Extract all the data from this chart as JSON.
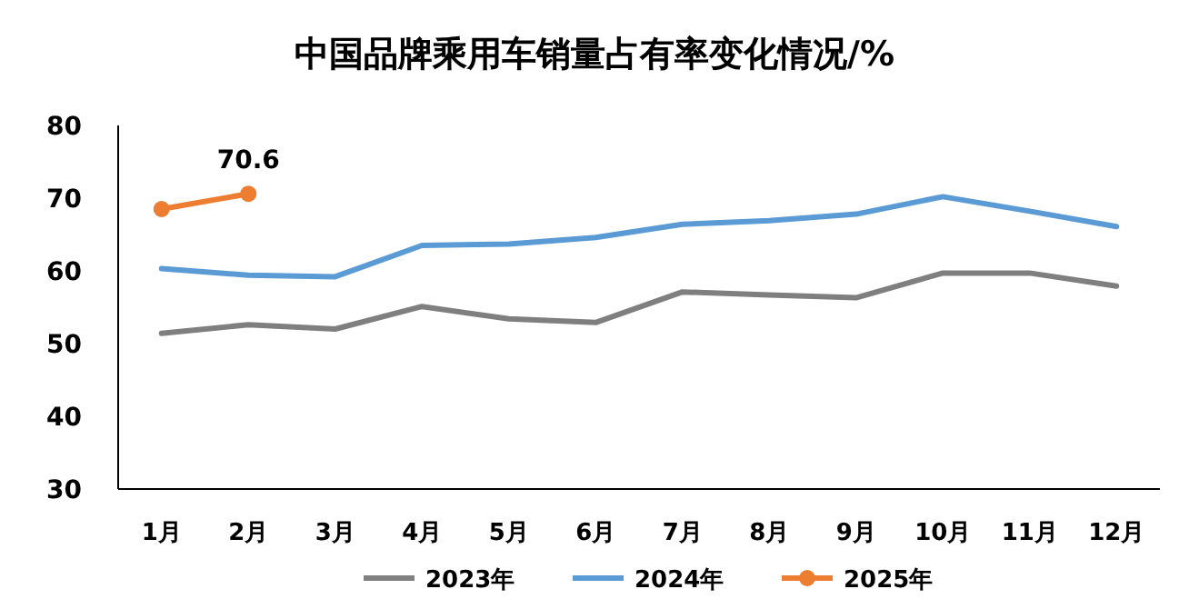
{
  "chart_data": {
    "type": "line",
    "title": "中国品牌乘用车销量占有率变化情况/%",
    "categories": [
      "1月",
      "2月",
      "3月",
      "4月",
      "5月",
      "6月",
      "7月",
      "8月",
      "9月",
      "10月",
      "11月",
      "12月"
    ],
    "series": [
      {
        "name": "2023年",
        "color": "#7f7f7f",
        "values": [
          51.4,
          52.6,
          52.0,
          55.1,
          53.4,
          52.9,
          57.1,
          56.7,
          56.3,
          59.7,
          59.7,
          57.9
        ]
      },
      {
        "name": "2024年",
        "color": "#5b9bd5",
        "values": [
          60.3,
          59.4,
          59.2,
          63.5,
          63.7,
          64.6,
          66.4,
          66.9,
          67.8,
          70.2,
          68.2,
          66.1
        ]
      },
      {
        "name": "2025年",
        "color": "#ed7d31",
        "marker": "circle",
        "values": [
          68.5,
          70.6,
          null,
          null,
          null,
          null,
          null,
          null,
          null,
          null,
          null,
          null
        ],
        "value_labels": [
          null,
          "70.6",
          null,
          null,
          null,
          null,
          null,
          null,
          null,
          null,
          null,
          null
        ]
      }
    ],
    "ylim": [
      30,
      80
    ],
    "yticks": [
      30,
      40,
      50,
      60,
      70,
      80
    ],
    "grid": false,
    "legend": "bottom"
  }
}
